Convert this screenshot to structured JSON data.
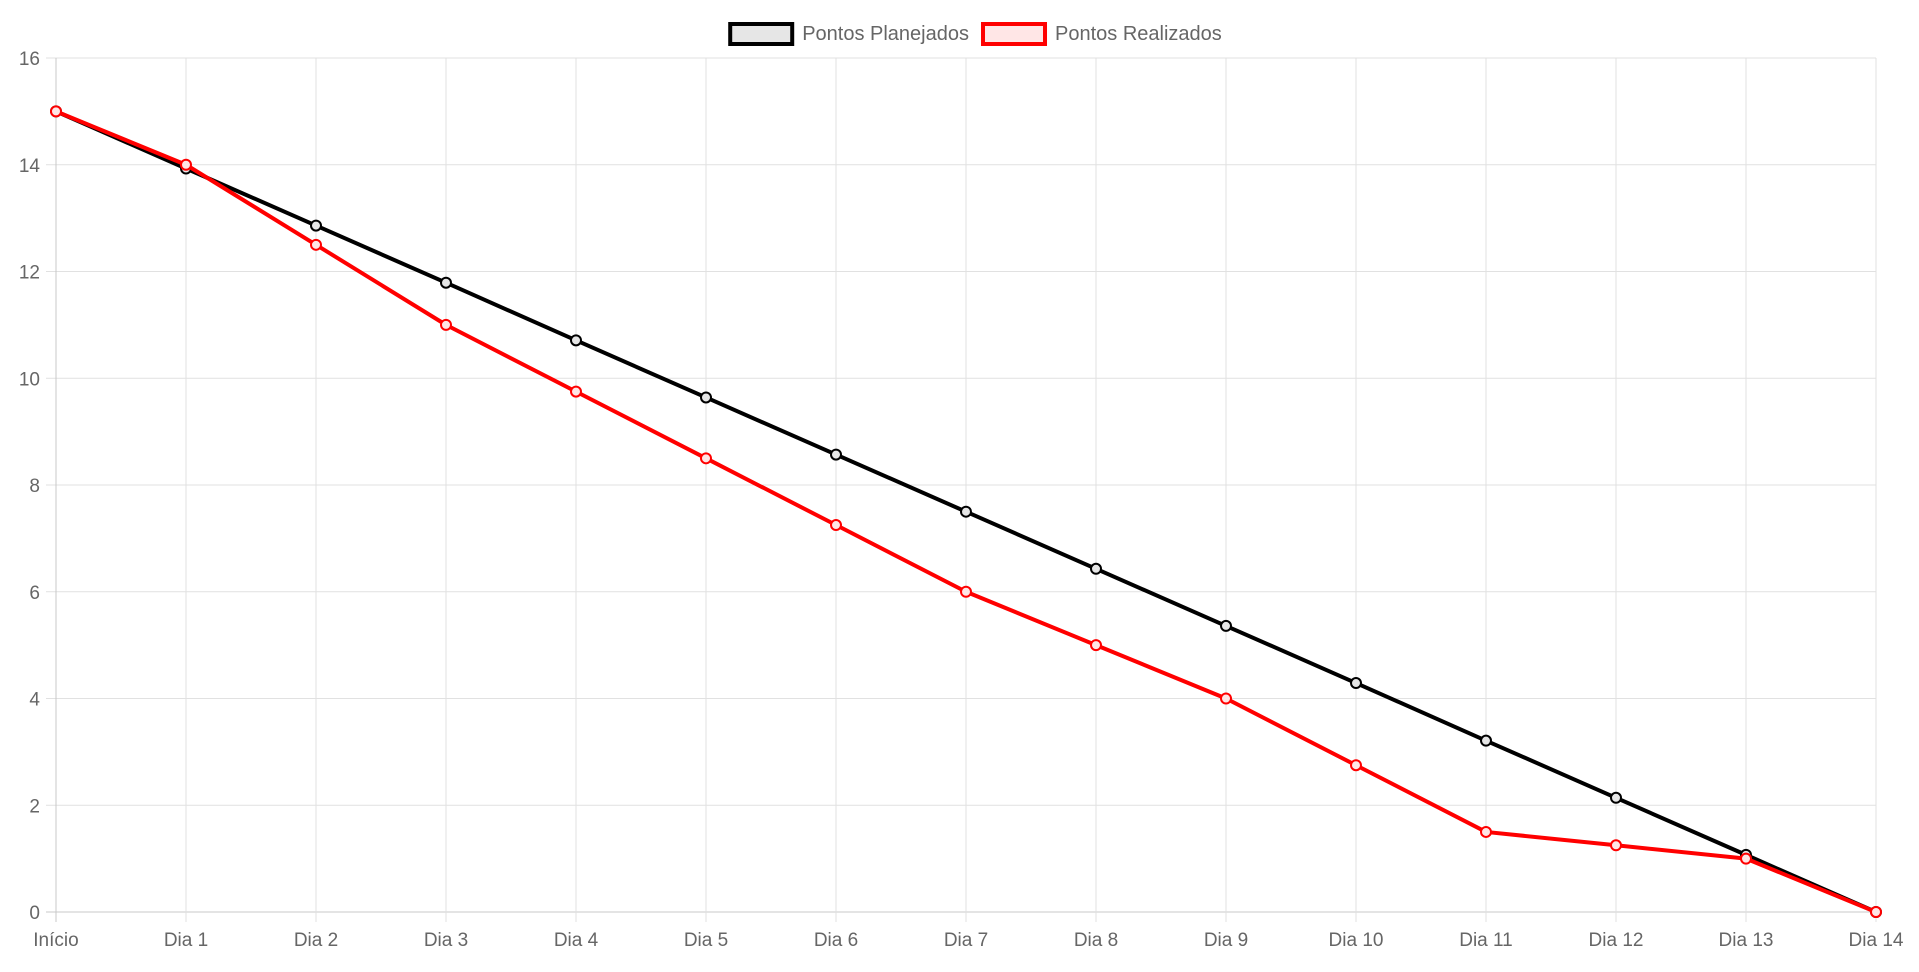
{
  "chart_data": {
    "type": "line",
    "title": "",
    "xlabel": "",
    "ylabel": "",
    "categories": [
      "Início",
      "Dia 1",
      "Dia 2",
      "Dia 3",
      "Dia 4",
      "Dia 5",
      "Dia 6",
      "Dia 7",
      "Dia 8",
      "Dia 9",
      "Dia 10",
      "Dia 11",
      "Dia 12",
      "Dia 13",
      "Dia 14"
    ],
    "y_ticks": [
      "0",
      "2",
      "4",
      "6",
      "8",
      "10",
      "12",
      "14",
      "16"
    ],
    "ylim": [
      0,
      16
    ],
    "grid": true,
    "legend_position": "top",
    "series": [
      {
        "name": "Pontos Planejados",
        "color": "#000000",
        "fill": "#e6e6e6",
        "values": [
          15,
          13.93,
          12.86,
          11.79,
          10.71,
          9.64,
          8.57,
          7.5,
          6.43,
          5.36,
          4.29,
          3.21,
          2.14,
          1.07,
          0
        ]
      },
      {
        "name": "Pontos Realizados",
        "color": "#ff0000",
        "fill": "#ffe6e6",
        "values": [
          15,
          14,
          12.5,
          11,
          9.75,
          8.5,
          7.25,
          6,
          5,
          4,
          2.75,
          1.5,
          1.25,
          1,
          0
        ]
      }
    ],
    "colors": {
      "grid": "#e1e1e1",
      "axis": "#c8c8c8",
      "tick_text": "#666666"
    }
  }
}
